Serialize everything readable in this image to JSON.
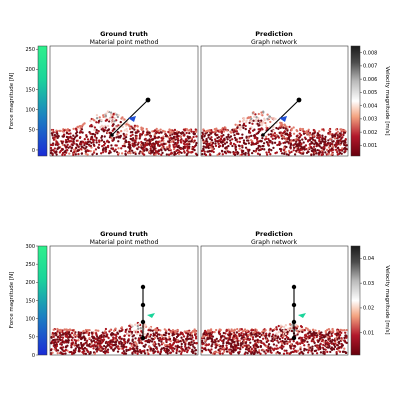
{
  "figure": {
    "panels": [
      {
        "ground_truth_title": "Ground truth",
        "ground_truth_subtitle": "Material point method",
        "prediction_title": "Prediction",
        "prediction_subtitle": "Graph network",
        "force_label": "Force magnitude [N]",
        "velocity_label": "Velocity magnitude [m/s]"
      },
      {
        "ground_truth_title": "Ground truth",
        "ground_truth_subtitle": "Material point method",
        "prediction_title": "Prediction",
        "prediction_subtitle": "Graph network",
        "force_label": "Force magnitude [N]",
        "velocity_label": "Velocity magnitude [m/s]"
      }
    ],
    "colors": {
      "material_dark": "#6e0a14",
      "material_mid": "#a8161f",
      "material_light": "#e07a6a",
      "material_pale": "#f4cfc6",
      "tool_line": "#000000",
      "force_arrow_top": "#1f4fd6",
      "force_arrow_bottom": "#1ad49a"
    }
  },
  "chart_data": [
    {
      "type": "colorbar",
      "name": "force-colorbar-top",
      "label": "Force magnitude [N]",
      "ticks": [
        0,
        50,
        100,
        150,
        200,
        250
      ],
      "ylim": [
        -15,
        258
      ],
      "colormap": [
        "#1a2bd6",
        "#1aa0b8",
        "#1ad49a",
        "#2ef08c"
      ]
    },
    {
      "type": "colorbar",
      "name": "velocity-colorbar-top",
      "label": "Velocity magnitude [m/s]",
      "ticks": [
        "0.001",
        "0.002",
        "0.003",
        "0.004",
        "0.005",
        "0.006",
        "0.007",
        "0.008"
      ],
      "tick_values": [
        0.001,
        0.002,
        0.003,
        0.004,
        0.005,
        0.006,
        0.007,
        0.008
      ],
      "ylim": [
        0.0002,
        0.0085
      ],
      "colormap": [
        "#67000d",
        "#b2182b",
        "#f4a582",
        "#ffffff",
        "#bababa",
        "#4d4d4d",
        "#1a1a1a"
      ]
    },
    {
      "type": "colorbar",
      "name": "force-colorbar-bottom",
      "label": "Force magnitude [N]",
      "ticks": [
        0,
        50,
        100,
        150,
        200,
        250,
        300
      ],
      "ylim": [
        0,
        300
      ],
      "colormap": [
        "#1a2bd6",
        "#1aa0b8",
        "#1ad49a",
        "#2ef08c"
      ]
    },
    {
      "type": "colorbar",
      "name": "velocity-colorbar-bottom",
      "label": "Velocity magnitude [m/s]",
      "ticks": [
        "0.01",
        "0.02",
        "0.03",
        "0.04"
      ],
      "tick_values": [
        0.01,
        0.02,
        0.03,
        0.04
      ],
      "ylim": [
        0.001,
        0.045
      ],
      "colormap": [
        "#67000d",
        "#b2182b",
        "#f4a582",
        "#ffffff",
        "#bababa",
        "#4d4d4d",
        "#1a1a1a"
      ]
    }
  ]
}
